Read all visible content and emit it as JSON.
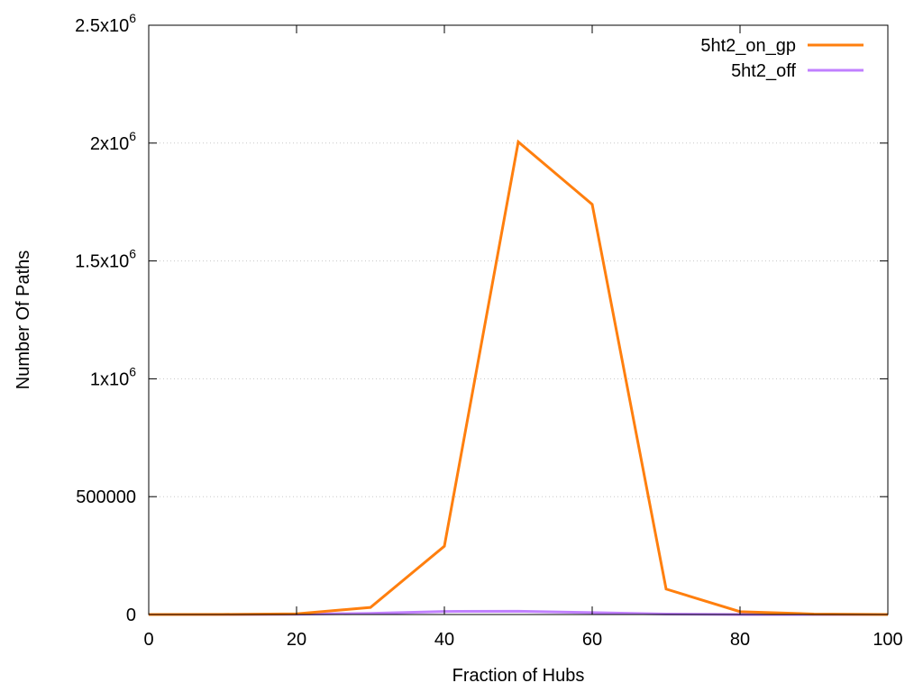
{
  "chart_data": {
    "type": "line",
    "xlabel": "Fraction of Hubs",
    "ylabel": "Number Of Paths",
    "xlim": [
      0,
      100
    ],
    "ylim": [
      0,
      2500000
    ],
    "x_ticks": [
      0,
      20,
      40,
      60,
      80,
      100
    ],
    "x_tick_labels": [
      "0",
      "20",
      "40",
      "60",
      "80",
      "100"
    ],
    "y_ticks": [
      {
        "value": 0,
        "label": "0",
        "exp": ""
      },
      {
        "value": 500000,
        "label": "500000",
        "exp": ""
      },
      {
        "value": 1000000,
        "label": "1x10",
        "exp": "6"
      },
      {
        "value": 1500000,
        "label": "1.5x10",
        "exp": "6"
      },
      {
        "value": 2000000,
        "label": "2x10",
        "exp": "6"
      },
      {
        "value": 2500000,
        "label": "2.5x10",
        "exp": "6"
      }
    ],
    "grid": "horizontal-dotted",
    "legend_position": "top-right",
    "x": [
      0,
      10,
      20,
      30,
      40,
      50,
      60,
      70,
      80,
      90,
      100
    ],
    "series": [
      {
        "name": "5ht2_on_gp",
        "color": "#ff7f0e",
        "values": [
          0,
          500,
          3000,
          30000,
          290000,
          2005000,
          1740000,
          108000,
          12000,
          2000,
          0
        ]
      },
      {
        "name": "5ht2_off",
        "color": "#c080ff",
        "values": [
          0,
          0,
          1000,
          5000,
          13000,
          14000,
          8000,
          2000,
          0,
          0,
          0
        ]
      }
    ]
  }
}
